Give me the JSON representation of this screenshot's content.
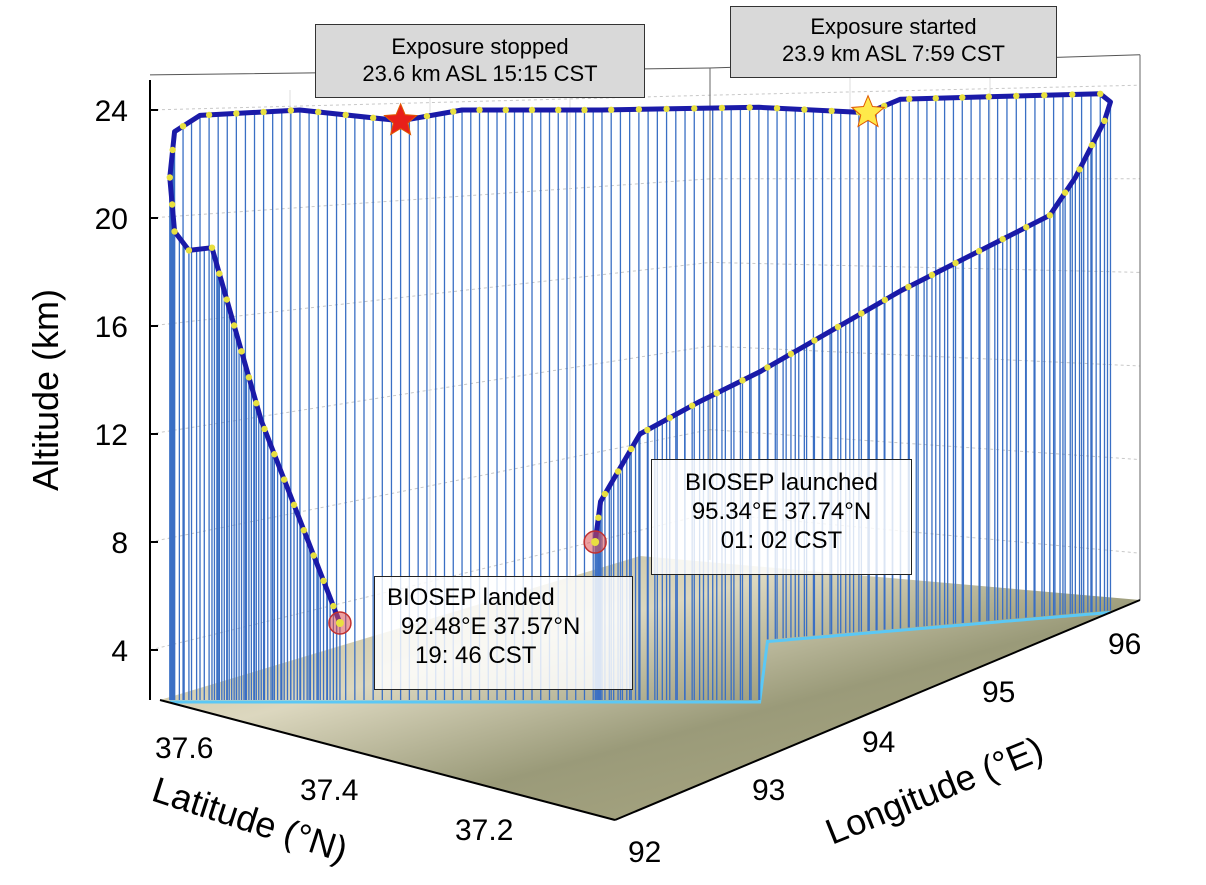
{
  "chart_data": {
    "type": "line",
    "subtype": "3d-trajectory",
    "axes": {
      "x": {
        "label": "Longitude (°E)",
        "ticks": [
          92,
          93,
          94,
          95,
          96
        ],
        "range": [
          92,
          96.2
        ]
      },
      "y": {
        "label": "Latitude (°N)",
        "ticks": [
          37.2,
          37.4,
          37.6
        ],
        "range": [
          36.9,
          37.8
        ]
      },
      "z": {
        "label": "Altitude (km)",
        "ticks": [
          4,
          8,
          12,
          16,
          20,
          24
        ],
        "range": [
          2,
          25
        ]
      }
    },
    "grid": true,
    "colors": {
      "trajectory": "#1a1aa8",
      "drop_lines": "#3a6fc4",
      "ground_track": "#5bc8f5",
      "markers": "#e8e040",
      "start_star": "#ffe94a",
      "stop_star": "#e8201a",
      "event_circle": "#e05050"
    },
    "trajectory_lon_lat_alt": [
      [
        95.34,
        37.74,
        8.0
      ],
      [
        95.3,
        37.72,
        9.5
      ],
      [
        95.33,
        37.65,
        12.0
      ],
      [
        95.53,
        37.58,
        13.2
      ],
      [
        95.69,
        37.5,
        14.3
      ],
      [
        95.8,
        37.25,
        17.3
      ],
      [
        95.98,
        37.0,
        20.1
      ],
      [
        95.98,
        36.95,
        21.5
      ],
      [
        96.01,
        36.9,
        23.6
      ],
      [
        96.06,
        36.9,
        24.3
      ],
      [
        96.06,
        36.92,
        24.6
      ],
      [
        95.8,
        37.06,
        24.5
      ],
      [
        95.5,
        37.18,
        24.4
      ],
      [
        95.4,
        37.22,
        23.9
      ],
      [
        95.0,
        37.34,
        24.1
      ],
      [
        94.5,
        37.53,
        24.0
      ],
      [
        93.8,
        37.64,
        24.0
      ],
      [
        93.5,
        37.69,
        23.6
      ],
      [
        93.0,
        37.77,
        24.0
      ],
      [
        92.25,
        37.79,
        23.8
      ],
      [
        92.08,
        37.8,
        23.2
      ],
      [
        92.04,
        37.8,
        21.5
      ],
      [
        92.08,
        37.8,
        19.5
      ],
      [
        92.2,
        37.8,
        18.8
      ],
      [
        92.35,
        37.79,
        18.9
      ],
      [
        92.42,
        37.71,
        12.5
      ],
      [
        92.48,
        37.57,
        5.0
      ]
    ],
    "annotations": [
      {
        "id": "exposure_stopped",
        "line1": "Exposure stopped",
        "line2": "23.6 km ASL 15:15 CST",
        "marker": "red-star",
        "point_index": 17
      },
      {
        "id": "exposure_started",
        "line1": "Exposure started",
        "line2": "23.9 km ASL 7:59 CST",
        "marker": "yellow-star",
        "point_index": 13
      },
      {
        "id": "launched",
        "line1": "BIOSEP launched",
        "line2": "95.34°E 37.74°N",
        "line3": "01: 02 CST",
        "marker": "red-circle",
        "point_index": 0
      },
      {
        "id": "landed",
        "line1": "BIOSEP landed",
        "line2": "92.48°E 37.57°N",
        "line3": "19: 46 CST",
        "marker": "red-circle",
        "point_index": 26
      }
    ]
  }
}
